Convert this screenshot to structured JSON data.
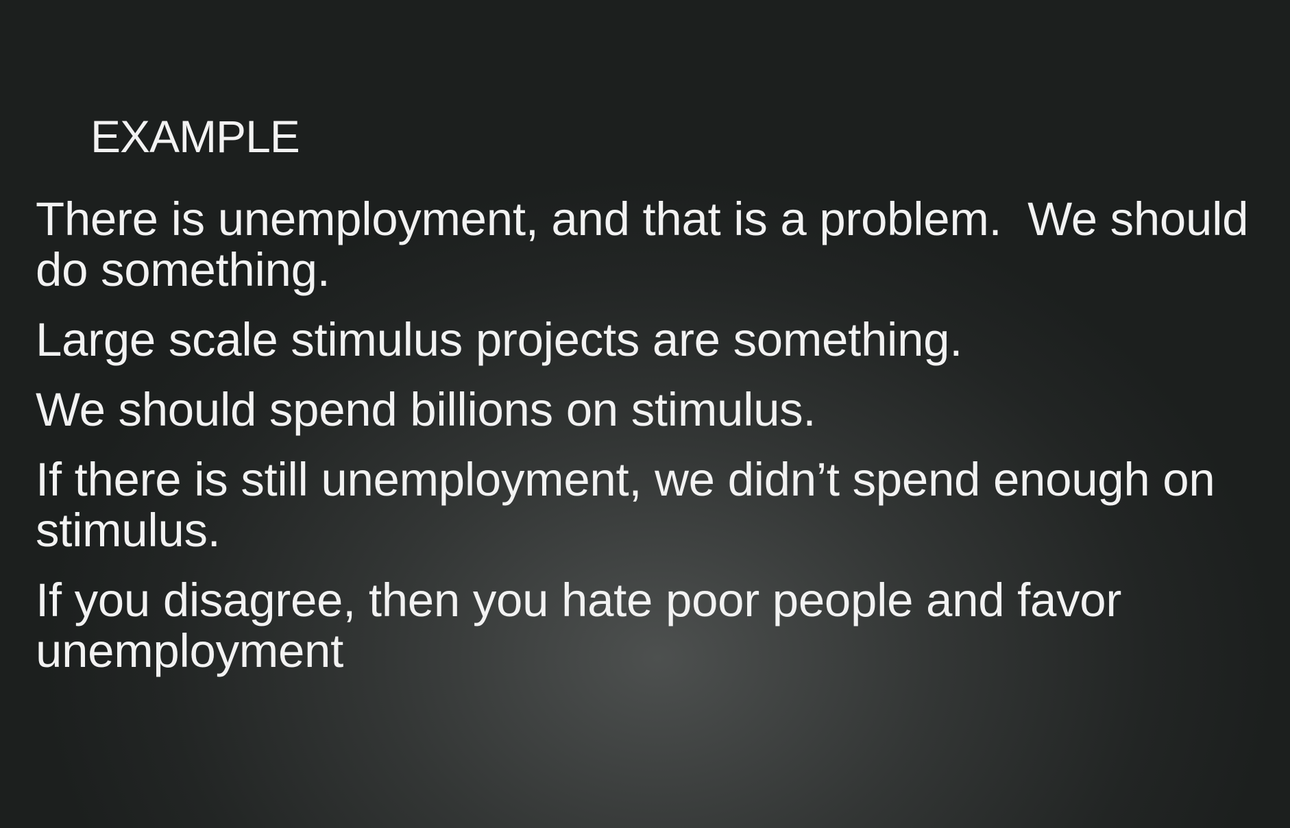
{
  "slide": {
    "title": "EXAMPLE",
    "paragraphs": [
      "There is unemployment, and that is a problem.  We should do something.",
      "Large scale stimulus projects are something.",
      "We should spend billions on stimulus.",
      "If there is still unemployment, we didn’t spend enough on stimulus.",
      "If you disagree, then you hate poor people and favor unemployment"
    ]
  }
}
